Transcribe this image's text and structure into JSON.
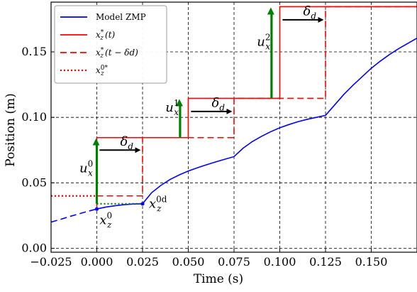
{
  "chart_data": {
    "type": "line",
    "xlabel": "Time (s)",
    "ylabel": "Position (m)",
    "xlim": [
      -0.025,
      0.175
    ],
    "ylim": [
      -0.003,
      0.188
    ],
    "grid": true,
    "grid_style": "dashed",
    "legend_placement": "top-left",
    "x_ticks": [
      -0.025,
      0.0,
      0.025,
      0.05,
      0.075,
      0.1,
      0.125,
      0.15
    ],
    "x_tick_labels": [
      "−0.025",
      "0.000",
      "0.025",
      "0.050",
      "0.075",
      "0.100",
      "0.125",
      "0.150"
    ],
    "y_ticks": [
      0.0,
      0.05,
      0.1,
      0.15
    ],
    "y_tick_labels": [
      "0.00",
      "0.05",
      "0.10",
      "0.15"
    ],
    "legend": [
      {
        "label": "Model ZMP",
        "color": "#0000ff",
        "style": "solid"
      },
      {
        "label": "x*z(t)",
        "color": "#ff0000",
        "style": "solid"
      },
      {
        "label": "x*z(t − δd)",
        "color": "#ff0000",
        "style": "dashed"
      },
      {
        "label": "x0*z",
        "color": "#ff0000",
        "style": "dotted"
      }
    ],
    "series": [
      {
        "name": "Model ZMP",
        "color": "#0000ff",
        "style": "solid",
        "points": [
          [
            0.0,
            0.03
          ],
          [
            0.005,
            0.0315
          ],
          [
            0.01,
            0.0325
          ],
          [
            0.015,
            0.0333
          ],
          [
            0.02,
            0.0338
          ],
          [
            0.025,
            0.034
          ],
          [
            0.03,
            0.0425
          ],
          [
            0.035,
            0.048
          ],
          [
            0.04,
            0.0525
          ],
          [
            0.045,
            0.056
          ],
          [
            0.05,
            0.059
          ],
          [
            0.055,
            0.0615
          ],
          [
            0.06,
            0.0638
          ],
          [
            0.065,
            0.066
          ],
          [
            0.07,
            0.068
          ],
          [
            0.075,
            0.07
          ],
          [
            0.08,
            0.0765
          ],
          [
            0.085,
            0.0815
          ],
          [
            0.09,
            0.0855
          ],
          [
            0.095,
            0.089
          ],
          [
            0.1,
            0.092
          ],
          [
            0.105,
            0.0945
          ],
          [
            0.11,
            0.0967
          ],
          [
            0.115,
            0.0985
          ],
          [
            0.12,
            0.1
          ],
          [
            0.125,
            0.1015
          ],
          [
            0.13,
            0.1095
          ],
          [
            0.135,
            0.1175
          ],
          [
            0.14,
            0.1245
          ],
          [
            0.145,
            0.131
          ],
          [
            0.15,
            0.1375
          ],
          [
            0.155,
            0.143
          ],
          [
            0.16,
            0.148
          ],
          [
            0.165,
            0.1525
          ],
          [
            0.17,
            0.1565
          ],
          [
            0.175,
            0.1605
          ]
        ]
      },
      {
        "name": "Model ZMP (history)",
        "color": "#0000ff",
        "style": "dashed",
        "points": [
          [
            -0.025,
            0.02
          ],
          [
            -0.02,
            0.022
          ],
          [
            -0.015,
            0.0242
          ],
          [
            -0.01,
            0.0262
          ],
          [
            -0.005,
            0.0282
          ],
          [
            0.0,
            0.03
          ]
        ]
      },
      {
        "name": "x*z(t)",
        "color": "#ff0000",
        "style": "solid",
        "points": [
          [
            0.0,
            0.03
          ],
          [
            0.0,
            0.0845
          ],
          [
            0.05,
            0.0845
          ],
          [
            0.05,
            0.1145
          ],
          [
            0.1,
            0.1145
          ],
          [
            0.1,
            0.1845
          ],
          [
            0.175,
            0.1845
          ]
        ]
      },
      {
        "name": "x*z(t − δd)",
        "color": "#ff0000",
        "style": "dashed",
        "points": [
          [
            0.0,
            0.04
          ],
          [
            0.025,
            0.04
          ],
          [
            0.025,
            0.0845
          ],
          [
            0.075,
            0.0845
          ],
          [
            0.075,
            0.1145
          ],
          [
            0.125,
            0.1145
          ],
          [
            0.125,
            0.1845
          ],
          [
            0.175,
            0.1845
          ]
        ]
      },
      {
        "name": "x0*z",
        "color": "#ff0000",
        "style": "dotted",
        "points": [
          [
            -0.025,
            0.04
          ],
          [
            0.0,
            0.04
          ]
        ]
      },
      {
        "name": "",
        "color": "#008000",
        "style": "dotted",
        "points": [
          [
            0.0,
            0.034
          ],
          [
            0.025,
            0.034
          ]
        ]
      }
    ],
    "arrows": [
      {
        "kind": "u",
        "color": "#008000",
        "x": 0.0,
        "y_from": 0.034,
        "y_to": 0.0845
      },
      {
        "kind": "u",
        "color": "#008000",
        "x": 0.0455,
        "y_from": 0.0845,
        "y_to": 0.1145
      },
      {
        "kind": "u",
        "color": "#008000",
        "x": 0.0955,
        "y_from": 0.1145,
        "y_to": 0.1845
      },
      {
        "kind": "delta",
        "color": "#000000",
        "y": 0.075,
        "x_from": 0.0015,
        "x_to": 0.024
      },
      {
        "kind": "delta",
        "color": "#000000",
        "y": 0.1045,
        "x_from": 0.0515,
        "x_to": 0.074
      },
      {
        "kind": "delta",
        "color": "#000000",
        "y": 0.1745,
        "x_from": 0.1015,
        "x_to": 0.124
      }
    ],
    "markers": [
      {
        "color": "#0000ff",
        "x": 0.0,
        "y": 0.03
      },
      {
        "color": "#0000ff",
        "x": 0.025,
        "y": 0.034
      }
    ],
    "annotations": [
      {
        "name": "ux0",
        "base": "u",
        "sub": "x",
        "sup": "0",
        "x": -0.0095,
        "y": 0.058
      },
      {
        "name": "ux1",
        "base": "u",
        "sub": "x",
        "sup": "1",
        "x": 0.0375,
        "y": 0.1045
      },
      {
        "name": "ux2",
        "base": "u",
        "sub": "x",
        "sup": "2",
        "x": 0.0875,
        "y": 0.1545
      },
      {
        "name": "delta1",
        "base": "δ",
        "sub": "d",
        "sup": "",
        "x": 0.0128,
        "y": 0.0785
      },
      {
        "name": "delta2",
        "base": "δ",
        "sub": "d",
        "sup": "",
        "x": 0.0628,
        "y": 0.108
      },
      {
        "name": "delta3",
        "base": "δ",
        "sub": "d",
        "sup": "",
        "x": 0.1128,
        "y": 0.178
      },
      {
        "name": "xz0",
        "base": "x",
        "sub": "z",
        "sup": "0",
        "x": 0.0015,
        "y": 0.0185
      },
      {
        "name": "xz0d",
        "base": "x",
        "sub": "z",
        "sup": "0d",
        "x": 0.0285,
        "y": 0.031
      }
    ]
  }
}
